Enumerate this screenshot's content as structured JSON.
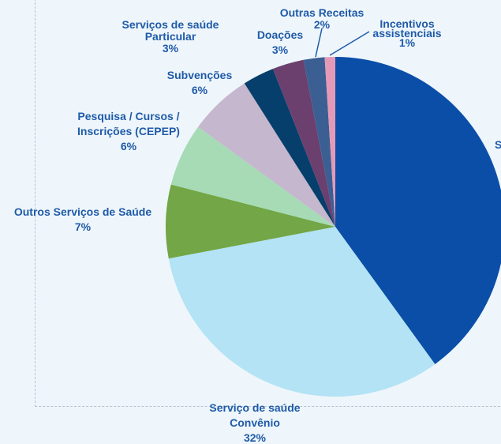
{
  "chart_data": {
    "type": "pie",
    "start_angle_deg": 0,
    "direction": "clockwise",
    "slices": [
      {
        "label_lines": [
          "S"
        ],
        "value": 40,
        "color": "#0b4ea8"
      },
      {
        "label_lines": [
          "Serviço de saúde",
          "Convênio",
          "32%"
        ],
        "value": 32,
        "color": "#b3e3f4"
      },
      {
        "label_lines": [
          "Outros Serviços de Saúde",
          "7%"
        ],
        "value": 7,
        "color": "#72a646"
      },
      {
        "label_lines": [
          "Pesquisa / Cursos /",
          "Inscrições (CEPEP)",
          "6%"
        ],
        "value": 6,
        "color": "#a6dbb6"
      },
      {
        "label_lines": [
          "Subvenções",
          "6%"
        ],
        "value": 6,
        "color": "#c5b7cd"
      },
      {
        "label_lines": [
          "Serviços de saúde",
          "Particular",
          "3%"
        ],
        "value": 3,
        "color": "#063f6b"
      },
      {
        "label_lines": [
          "Doações",
          "3%"
        ],
        "value": 3,
        "color": "#6b3f6e"
      },
      {
        "label_lines": [
          "Outras Receitas",
          "2%"
        ],
        "value": 2,
        "color": "#3b5f93"
      },
      {
        "label_lines": [
          "Incentivos",
          "assistenciais",
          "1%"
        ],
        "value": 1,
        "color": "#e49ab6"
      }
    ]
  }
}
